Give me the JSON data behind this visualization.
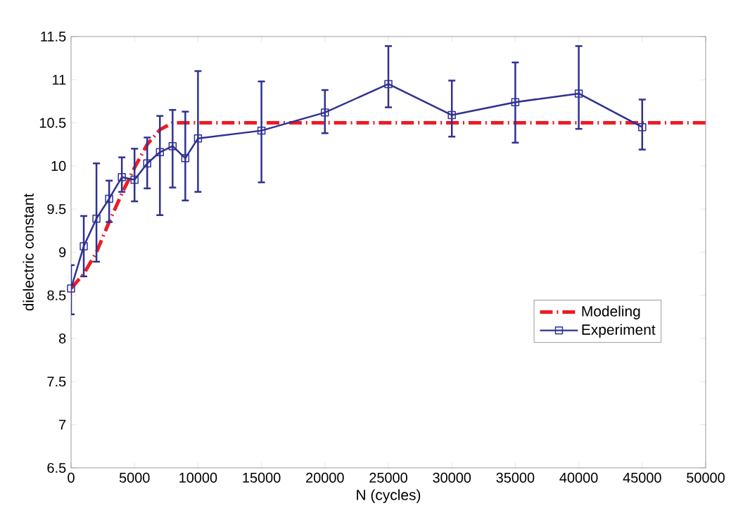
{
  "chart_data": {
    "type": "line",
    "xlabel": "N (cycles)",
    "ylabel": "dielectric constant",
    "xlim": [
      0,
      50000
    ],
    "ylim": [
      6.5,
      11.5
    ],
    "xticks": [
      0,
      5000,
      10000,
      15000,
      20000,
      25000,
      30000,
      35000,
      40000,
      45000,
      50000
    ],
    "yticks": [
      6.5,
      7,
      7.5,
      8,
      8.5,
      9,
      9.5,
      10,
      10.5,
      11,
      11.5
    ],
    "grid": false,
    "legend": "right",
    "series": [
      {
        "name": "Modeling",
        "color": "#ed1c24",
        "line_style": "dashed",
        "marker": "none",
        "x": [
          0,
          1000,
          2000,
          3000,
          4000,
          5000,
          6000,
          7000,
          8000,
          50000
        ],
        "values": [
          8.58,
          8.75,
          9.0,
          9.35,
          9.68,
          9.98,
          10.25,
          10.42,
          10.5,
          10.5
        ]
      },
      {
        "name": "Experiment",
        "color": "#2e3192",
        "line_style": "solid",
        "marker": "square",
        "x": [
          0,
          1000,
          2000,
          3000,
          4000,
          5000,
          6000,
          7000,
          8000,
          9000,
          10000,
          15000,
          20000,
          25000,
          30000,
          35000,
          40000,
          45000
        ],
        "values": [
          8.58,
          9.07,
          9.39,
          9.62,
          9.87,
          9.84,
          10.03,
          10.16,
          10.23,
          10.09,
          10.32,
          10.41,
          10.62,
          10.95,
          10.59,
          10.74,
          10.84,
          10.45
        ],
        "errors": [
          [
            8.28,
            8.85
          ],
          [
            8.72,
            9.42
          ],
          [
            8.89,
            10.03
          ],
          [
            9.35,
            9.83
          ],
          [
            9.7,
            10.1
          ],
          [
            9.59,
            10.2
          ],
          [
            9.74,
            10.33
          ],
          [
            9.43,
            10.58
          ],
          [
            9.75,
            10.65
          ],
          [
            9.6,
            10.63
          ],
          [
            9.7,
            11.1
          ],
          [
            9.81,
            10.98
          ],
          [
            10.38,
            10.88
          ],
          [
            10.68,
            11.39
          ],
          [
            10.34,
            10.99
          ],
          [
            10.27,
            11.2
          ],
          [
            10.43,
            11.39
          ],
          [
            10.19,
            10.77
          ]
        ]
      }
    ]
  }
}
